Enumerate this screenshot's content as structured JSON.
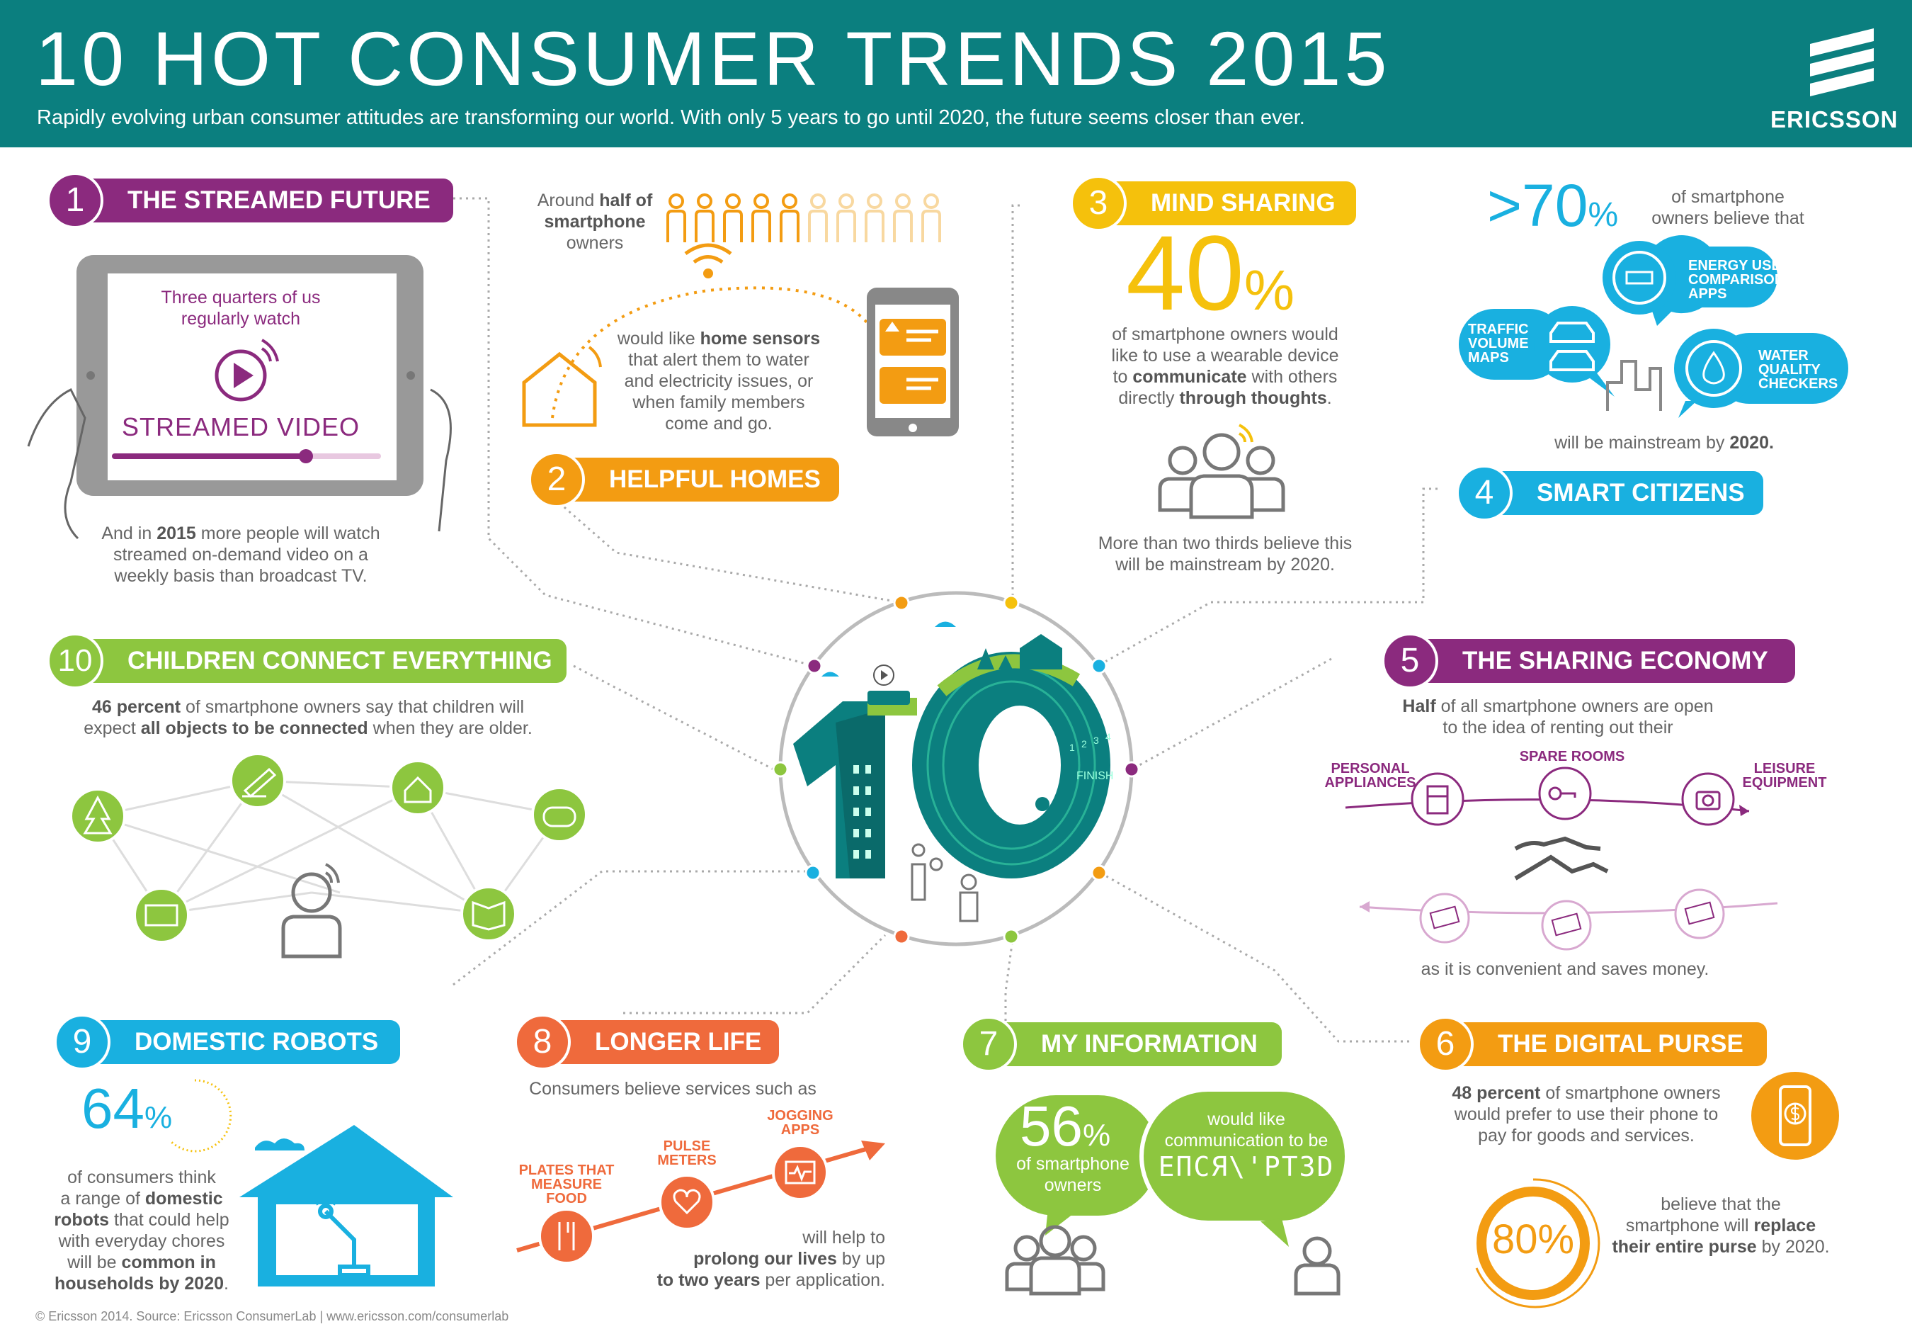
{
  "header": {
    "title": "10 HOT CONSUMER TRENDS 2015",
    "subtitle": "Rapidly evolving urban consumer attitudes are transforming our world. With only 5 years to go until 2020, the future seems closer than ever.",
    "brand": "ERICSSON"
  },
  "colors": {
    "header_bg": "#0b7f7f",
    "purple": "#8b2a7e",
    "orange": "#f39c12",
    "yellow": "#f5c10c",
    "cyan": "#19b0e0",
    "green": "#8dc63f",
    "red": "#ef6a3c",
    "teal": "#0b7f7f"
  },
  "t1": {
    "num": "1",
    "label": "THE STREAMED FUTURE",
    "tablet_line1": "Three quarters of us",
    "tablet_line2": "regularly watch",
    "tablet_big": "STREAMED VIDEO",
    "note_a": "And in ",
    "note_b": "2015",
    "note_c": " more people will watch",
    "note_2": "streamed on-demand video on a",
    "note_3": "weekly basis than broadcast TV."
  },
  "t2": {
    "num": "2",
    "label": "HELPFUL HOMES",
    "top_a": "Around ",
    "top_b": "half of",
    "top_c": "smartphone",
    "top_d": "owners",
    "share_highlighted": 5,
    "share_total": 10,
    "l1a": "would like ",
    "l1b": "home sensors",
    "l2": "that alert them to water",
    "l3": "and electricity issues, or",
    "l4": "when family members",
    "l5": "come and go."
  },
  "t3": {
    "num": "3",
    "label": "MIND SHARING",
    "big": "40",
    "pct": "%",
    "l1": "of smartphone owners would",
    "l2": "like to use a wearable device",
    "l3a": "to ",
    "l3b": "communicate",
    "l3c": " with others",
    "l4a": "directly ",
    "l4b": "through thoughts",
    "l4c": ".",
    "note1": "More than two thirds believe this",
    "note2": "will be mainstream by 2020."
  },
  "t4": {
    "num": "4",
    "label": "SMART CITIZENS",
    "big": ">70",
    "pct": "%",
    "top1": "of smartphone",
    "top2": "owners believe that",
    "energy": [
      "ENERGY USE",
      "COMPARISON",
      "APPS"
    ],
    "traffic": [
      "TRAFFIC",
      "VOLUME",
      "MAPS"
    ],
    "water": [
      "WATER",
      "QUALITY",
      "CHECKERS"
    ],
    "bottom_a": "will be mainstream by ",
    "bottom_b": "2020."
  },
  "t5": {
    "num": "5",
    "label": "THE SHARING ECONOMY",
    "top_a": "Half",
    "top_b": " of all smartphone owners are open",
    "top2": "to the idea of renting out their",
    "items": [
      "PERSONAL",
      "APPLIANCES",
      "SPARE ROOMS",
      "LEISURE",
      "EQUIPMENT"
    ],
    "bottom": "as it is convenient and saves money."
  },
  "t6": {
    "num": "6",
    "label": "THE DIGITAL PURSE",
    "l1a": "48 percent",
    "l1b": " of smartphone owners",
    "l2": "would prefer to use their phone to",
    "l3": "pay for goods and services.",
    "big": "80%",
    "r1": "believe that the",
    "r2a": "smartphone will ",
    "r2b": "replace",
    "r3a": "their entire purse",
    "r3b": " by 2020."
  },
  "t7": {
    "num": "7",
    "label": "MY INFORMATION",
    "big": "56",
    "pct": "%",
    "bubble_l1": "of smartphone",
    "bubble_l2": "owners",
    "r1": "would like",
    "r2": "communication to be",
    "r3": "ЕПСЯ\\'РТ3D"
  },
  "t8": {
    "num": "8",
    "label": "LONGER LIFE",
    "top": "Consumers believe services such as",
    "plates": [
      "PLATES THAT",
      "MEASURE",
      "FOOD"
    ],
    "pulse": [
      "PULSE",
      "METERS"
    ],
    "jogging": [
      "JOGGING",
      "APPS"
    ],
    "b1": "will help to",
    "b2a": "prolong our lives",
    "b2b": " by up",
    "b3a": "to two years",
    "b3b": " per application."
  },
  "t9": {
    "num": "9",
    "label": "DOMESTIC ROBOTS",
    "big": "64",
    "pct": "%",
    "l1": "of consumers think",
    "l2a": "a range of ",
    "l2b": "domestic",
    "l3a": "robots",
    "l3b": " that could help",
    "l4": "with everyday chores",
    "l5a": "will be ",
    "l5b": "common in",
    "l6a": "households by 2020",
    "l6b": "."
  },
  "t10": {
    "num": "10",
    "label": "CHILDREN CONNECT EVERYTHING",
    "l1a": "46 percent",
    "l1b": " of smartphone owners say that children will",
    "l2a": "expect ",
    "l2b": "all objects to be connected",
    "l2c": " when they are older."
  },
  "centre": {
    "digits": "10",
    "lanes": [
      "1",
      "2",
      "3",
      "4"
    ],
    "finish": "FINISH"
  },
  "footer": "© Ericsson 2014. Source: Ericsson ConsumerLab  |  www.ericsson.com/consumerlab"
}
